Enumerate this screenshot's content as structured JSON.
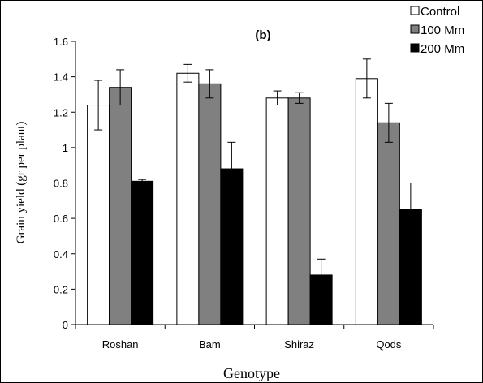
{
  "chart_data": {
    "type": "bar",
    "panel_label": "(b)",
    "xlabel": "Genotype",
    "ylabel": "Grain yield (gr per plant)",
    "categories": [
      "Roshan",
      "Bam",
      "Shiraz",
      "Qods"
    ],
    "ylim": [
      0,
      1.6
    ],
    "yticks": [
      "0",
      "0.2",
      "0.4",
      "0.6",
      "0.8",
      "1",
      "1.2",
      "1.4",
      "1.6"
    ],
    "legend_position": "top-right",
    "grid": false,
    "series": [
      {
        "name": "Control",
        "color": "#ffffff",
        "values": [
          1.24,
          1.42,
          1.28,
          1.39
        ],
        "errors": [
          0.14,
          0.05,
          0.04,
          0.11
        ]
      },
      {
        "name": "100 Mm",
        "color": "#808080",
        "values": [
          1.34,
          1.36,
          1.28,
          1.14
        ],
        "errors": [
          0.1,
          0.08,
          0.03,
          0.11
        ]
      },
      {
        "name": "200 Mm",
        "color": "#000000",
        "values": [
          0.81,
          0.88,
          0.28,
          0.65
        ],
        "errors": [
          0.01,
          0.15,
          0.09,
          0.15
        ]
      }
    ]
  }
}
